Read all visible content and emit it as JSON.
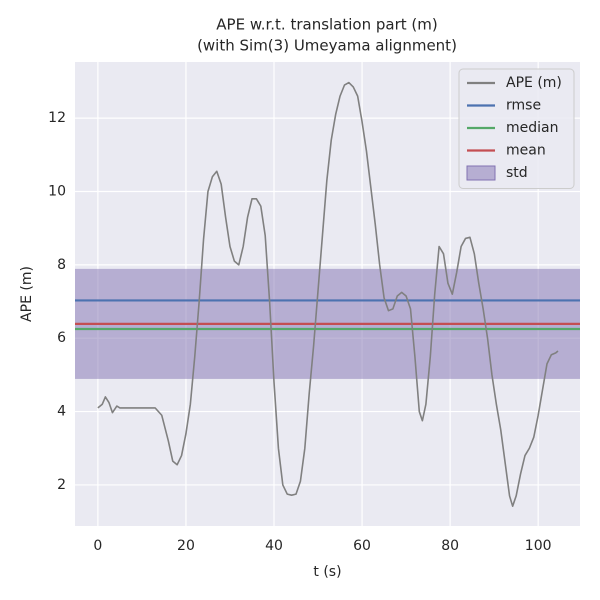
{
  "chart_data": {
    "type": "line",
    "title": "APE w.r.t. translation part (m)",
    "subtitle": "(with Sim(3) Umeyama alignment)",
    "xlabel": "t (s)",
    "ylabel": "APE (m)",
    "xlim": [
      -5.2,
      109.5
    ],
    "ylim": [
      0.88,
      13.53
    ],
    "xticks": [
      0,
      20,
      40,
      60,
      80,
      100
    ],
    "yticks": [
      2,
      4,
      6,
      8,
      10,
      12
    ],
    "grid": true,
    "legend": "upper right",
    "x": [
      0,
      1,
      1.7,
      2.5,
      3.3,
      4.3,
      5,
      8,
      13,
      14.5,
      16,
      17,
      18,
      19,
      20,
      21,
      22,
      23,
      24,
      25,
      26,
      27,
      28,
      29,
      30,
      31,
      32,
      33,
      34,
      35,
      36,
      37,
      38,
      39,
      40,
      41,
      42,
      43,
      44,
      45,
      46,
      47,
      48,
      49,
      50,
      51,
      52,
      53,
      54,
      55,
      56,
      57,
      58,
      59,
      60,
      61,
      62,
      63,
      64,
      65,
      66,
      67,
      68,
      69,
      70,
      71,
      72,
      73,
      73.7,
      74.5,
      75.5,
      76.5,
      77.5,
      78.5,
      79.5,
      80.5,
      81.5,
      82.5,
      83.5,
      84.5,
      85.5,
      86.5,
      87.5,
      88.5,
      89.5,
      90.5,
      91.5,
      92.5,
      93.5,
      94.2,
      95,
      96,
      97,
      98,
      99,
      100,
      101,
      102,
      103,
      104,
      104.5
    ],
    "series": [
      {
        "name": "APE (m)",
        "color": "#808080",
        "values": [
          4.1,
          4.2,
          4.4,
          4.25,
          3.97,
          4.15,
          4.1,
          4.1,
          4.1,
          3.9,
          3.2,
          2.65,
          2.55,
          2.8,
          3.4,
          4.2,
          5.5,
          7,
          8.7,
          10,
          10.4,
          10.55,
          10.2,
          9.3,
          8.5,
          8.1,
          8.0,
          8.5,
          9.3,
          9.8,
          9.8,
          9.6,
          8.8,
          7,
          4.8,
          3,
          2,
          1.75,
          1.72,
          1.75,
          2.1,
          3,
          4.5,
          5.8,
          7.3,
          8.8,
          10.3,
          11.4,
          12.1,
          12.6,
          12.9,
          12.97,
          12.85,
          12.6,
          11.9,
          11.1,
          10.1,
          9.1,
          8,
          7.1,
          6.75,
          6.8,
          7.15,
          7.25,
          7.15,
          6.8,
          5.5,
          4,
          3.75,
          4.2,
          5.5,
          7.2,
          8.5,
          8.3,
          7.5,
          7.2,
          7.8,
          8.5,
          8.72,
          8.75,
          8.3,
          7.5,
          6.8,
          6,
          5,
          4.2,
          3.5,
          2.6,
          1.7,
          1.42,
          1.7,
          2.3,
          2.8,
          3.0,
          3.3,
          3.9,
          4.6,
          5.3,
          5.55,
          5.6,
          5.65
        ]
      }
    ],
    "stats": [
      {
        "name": "rmse",
        "color": "#4c72b0",
        "value": 7.03
      },
      {
        "name": "median",
        "color": "#55a868",
        "value": 6.25
      },
      {
        "name": "mean",
        "color": "#c44e52",
        "value": 6.39
      }
    ],
    "std": {
      "name": "std",
      "color": "#8172b2",
      "value": 1.5
    }
  }
}
